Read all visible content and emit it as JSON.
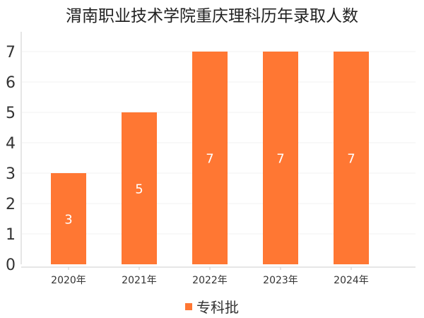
{
  "chart_data": {
    "type": "bar",
    "title": "渭南职业技术学院重庆理科历年录取人数",
    "categories": [
      "2020年",
      "2021年",
      "2022年",
      "2023年",
      "2024年"
    ],
    "series": [
      {
        "name": "专科批",
        "values": [
          3,
          5,
          7,
          7,
          7
        ],
        "color": "#ff7733"
      }
    ],
    "data_labels": [
      "3",
      "5",
      "7",
      "7",
      "7"
    ],
    "y_ticks": [
      "0",
      "1",
      "2",
      "3",
      "4",
      "5",
      "6",
      "7"
    ],
    "ylim": [
      0,
      7
    ],
    "xlabel": "",
    "ylabel": "",
    "grid": true,
    "legend_position": "bottom"
  }
}
